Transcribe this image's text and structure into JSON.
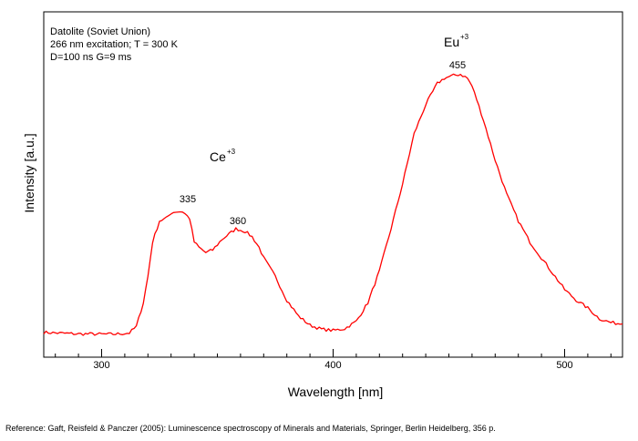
{
  "chart_data": {
    "type": "line",
    "title": "",
    "annotations": {
      "info_lines": [
        "Datolite (Soviet Union)",
        "266 nm excitation; T = 300 K",
        "D=100 ns G=9 ms"
      ],
      "ions": [
        {
          "base": "Ce",
          "charge": "+3",
          "x": 345
        },
        {
          "base": "Eu",
          "charge": "+3",
          "x": 452
        }
      ],
      "peaks": [
        {
          "label": "335",
          "x": 335
        },
        {
          "label": "360",
          "x": 359
        },
        {
          "label": "455",
          "x": 455
        }
      ]
    },
    "xlabel": "Wavelength [nm]",
    "ylabel": "Intensity [a.u.]",
    "xlim": [
      275,
      525
    ],
    "ylim": [
      0,
      1
    ],
    "x_ticks": [
      300,
      400,
      500
    ],
    "x_tick_labels": [
      "300",
      "400",
      "500"
    ],
    "grid": false,
    "series": [
      {
        "color": "#ff0000",
        "x": [
          275,
          280,
          285,
          290,
          295,
          300,
          305,
          310,
          312,
          315,
          318,
          320,
          322,
          325,
          328,
          330,
          332,
          335,
          338,
          340,
          342,
          345,
          348,
          350,
          352,
          355,
          358,
          360,
          362,
          365,
          368,
          370,
          375,
          380,
          385,
          390,
          395,
          400,
          405,
          410,
          415,
          420,
          425,
          430,
          435,
          440,
          445,
          448,
          450,
          452,
          455,
          458,
          460,
          462,
          465,
          470,
          475,
          480,
          485,
          490,
          495,
          500,
          505,
          510,
          515,
          520,
          525
        ],
        "y": [
          0.018,
          0.016,
          0.014,
          0.012,
          0.012,
          0.011,
          0.011,
          0.014,
          0.016,
          0.04,
          0.13,
          0.23,
          0.36,
          0.44,
          0.45,
          0.47,
          0.475,
          0.475,
          0.45,
          0.36,
          0.34,
          0.32,
          0.33,
          0.35,
          0.37,
          0.39,
          0.41,
          0.405,
          0.4,
          0.38,
          0.34,
          0.3,
          0.23,
          0.14,
          0.08,
          0.045,
          0.03,
          0.025,
          0.032,
          0.06,
          0.13,
          0.25,
          0.41,
          0.58,
          0.77,
          0.88,
          0.96,
          0.98,
          0.985,
          0.99,
          0.995,
          0.98,
          0.95,
          0.9,
          0.82,
          0.67,
          0.54,
          0.44,
          0.36,
          0.3,
          0.24,
          0.18,
          0.14,
          0.11,
          0.07,
          0.055,
          0.05
        ]
      }
    ]
  },
  "reference": "Reference: Gaft, Reisfeld & Panczer (2005): Luminescence spectroscopy of Minerals and Materials, Springer, Berlin Heidelberg, 356 p."
}
